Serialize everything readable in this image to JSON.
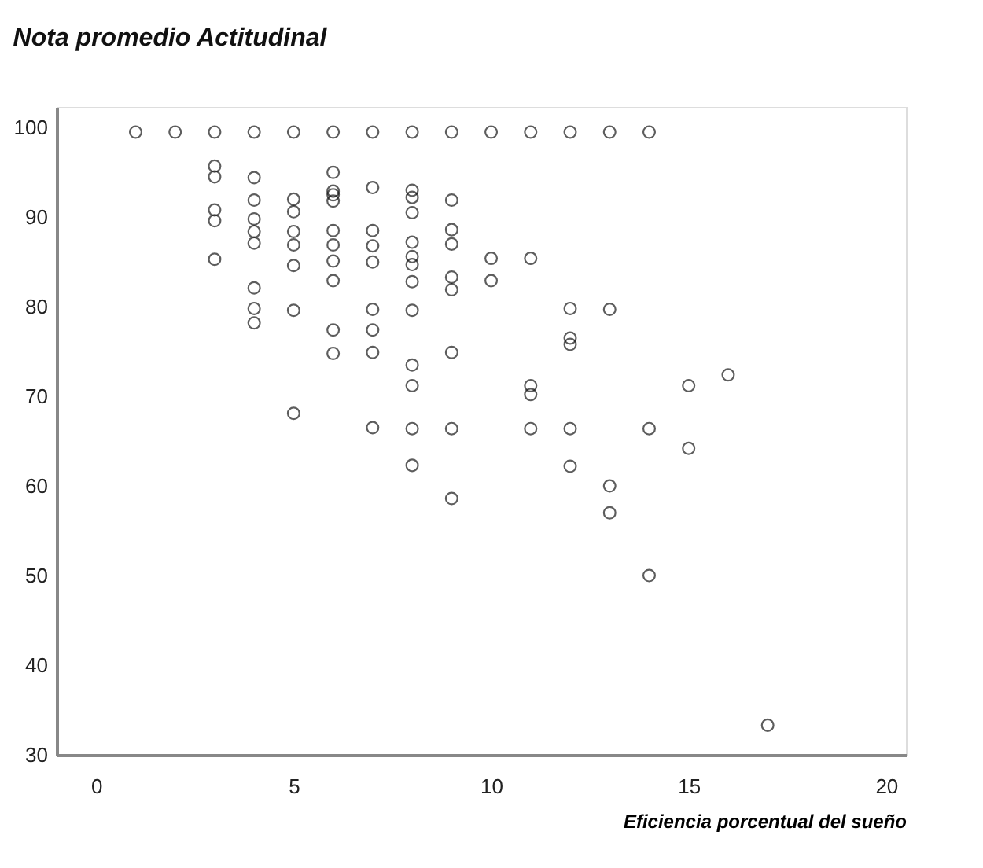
{
  "chart_data": {
    "type": "scatter",
    "title": "Nota promedio Actitudinal",
    "xlabel": "Eficiencia porcentual del sueño",
    "x": [
      1,
      2,
      3,
      4,
      5,
      6,
      7,
      8,
      9,
      10,
      11,
      12,
      13,
      14,
      3,
      3,
      3,
      3,
      3,
      4,
      4,
      4,
      4,
      4,
      4,
      4,
      4,
      5,
      5,
      5,
      5,
      5,
      5,
      5,
      6,
      6,
      6,
      6,
      6,
      6,
      6,
      6,
      6,
      6,
      7,
      7,
      7,
      7,
      7,
      7,
      7,
      7,
      8,
      8,
      8,
      8,
      8,
      8,
      8,
      8,
      8,
      8,
      8,
      8,
      9,
      9,
      9,
      9,
      9,
      9,
      9,
      9,
      10,
      10,
      11,
      11,
      11,
      11,
      12,
      12,
      12,
      12,
      12,
      13,
      13,
      13,
      14,
      14,
      15,
      15,
      16,
      17
    ],
    "values": [
      99.5,
      99.5,
      99.5,
      99.5,
      99.5,
      99.5,
      99.5,
      99.5,
      99.5,
      99.5,
      99.5,
      99.5,
      99.5,
      99.5,
      95.7,
      94.5,
      90.8,
      89.6,
      85.3,
      94.4,
      91.9,
      89.8,
      88.4,
      87.1,
      82.1,
      79.8,
      78.2,
      92.0,
      90.6,
      88.4,
      86.9,
      84.6,
      79.6,
      68.1,
      95.0,
      92.9,
      92.5,
      91.8,
      88.5,
      86.9,
      85.1,
      82.9,
      77.4,
      74.8,
      93.3,
      88.5,
      86.8,
      85.0,
      79.7,
      77.4,
      74.9,
      66.5,
      93.0,
      92.2,
      90.5,
      87.2,
      85.6,
      84.7,
      82.8,
      79.6,
      73.5,
      71.2,
      66.4,
      62.3,
      91.9,
      88.6,
      87.0,
      83.3,
      81.9,
      74.9,
      66.4,
      58.6,
      85.4,
      82.9,
      85.4,
      71.2,
      70.2,
      66.4,
      79.8,
      76.5,
      75.8,
      66.4,
      62.2,
      79.7,
      60.0,
      57.0,
      66.4,
      50.0,
      71.2,
      64.2,
      72.4,
      33.3
    ],
    "color": "#1a1a1a",
    "marker": "circle",
    "grid": false,
    "xlim": [
      -1,
      20.5
    ],
    "ylim": [
      30,
      102.3
    ],
    "xticks": [
      0,
      5,
      10,
      15,
      20
    ],
    "yticks": [
      30,
      40,
      50,
      60,
      70,
      80,
      90,
      100
    ]
  }
}
